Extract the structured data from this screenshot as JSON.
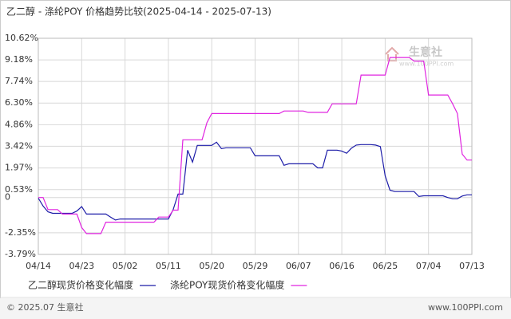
{
  "chart_data": {
    "type": "line",
    "title": "乙二醇 - 涤纶POY 价格趋势比较(2025-04-14 - 2025-07-13)",
    "categories": [
      "04/14",
      null,
      null,
      null,
      null,
      null,
      null,
      null,
      null,
      "04/23",
      null,
      null,
      null,
      null,
      null,
      null,
      null,
      null,
      "05/02",
      null,
      null,
      null,
      null,
      null,
      null,
      null,
      null,
      "05/11",
      null,
      null,
      null,
      null,
      null,
      null,
      null,
      null,
      "05/20",
      null,
      null,
      null,
      null,
      null,
      null,
      null,
      null,
      "05/29",
      null,
      null,
      null,
      null,
      null,
      null,
      null,
      null,
      "06/07",
      null,
      null,
      null,
      null,
      null,
      null,
      null,
      null,
      "06/16",
      null,
      null,
      null,
      null,
      null,
      null,
      null,
      null,
      "06/25",
      null,
      null,
      null,
      null,
      null,
      null,
      null,
      null,
      "07/04",
      null,
      null,
      null,
      null,
      null,
      null,
      null,
      null,
      "07/13"
    ],
    "series": [
      {
        "name": "乙二醇现货价格变化幅度",
        "color": "#1c1ca8",
        "values": [
          -0.04,
          -0.57,
          -0.95,
          -1.05,
          -1.05,
          -1.05,
          -1.05,
          -1.05,
          -0.9,
          -0.6,
          -1.1,
          -1.1,
          -1.1,
          -1.1,
          -1.1,
          -1.3,
          -1.5,
          -1.43,
          -1.43,
          -1.43,
          -1.43,
          -1.43,
          -1.43,
          -1.43,
          -1.43,
          -1.43,
          -1.43,
          -1.43,
          -0.8,
          0.23,
          0.23,
          3.16,
          2.36,
          3.48,
          3.48,
          3.48,
          3.48,
          3.69,
          3.26,
          3.32,
          3.32,
          3.32,
          3.32,
          3.32,
          3.32,
          2.78,
          2.78,
          2.78,
          2.78,
          2.78,
          2.78,
          2.15,
          2.25,
          2.25,
          2.25,
          2.25,
          2.25,
          2.25,
          1.98,
          1.98,
          3.16,
          3.16,
          3.16,
          3.1,
          2.95,
          3.3,
          3.5,
          3.53,
          3.53,
          3.53,
          3.5,
          3.4,
          1.45,
          0.49,
          0.4,
          0.4,
          0.4,
          0.4,
          0.4,
          0.07,
          0.12,
          0.12,
          0.12,
          0.12,
          0.12,
          0.0,
          -0.08,
          -0.08,
          0.1,
          0.18,
          0.18
        ]
      },
      {
        "name": "涤纶POY现货价格变化幅度",
        "color": "#e024e0",
        "values": [
          0.0,
          0.0,
          -0.8,
          -0.8,
          -0.8,
          -1.1,
          -1.1,
          -1.1,
          -1.1,
          -2.0,
          -2.4,
          -2.4,
          -2.4,
          -2.4,
          -1.64,
          -1.64,
          -1.64,
          -1.64,
          -1.64,
          -1.64,
          -1.64,
          -1.64,
          -1.64,
          -1.64,
          -1.64,
          -1.3,
          -1.3,
          -1.3,
          -0.84,
          -0.84,
          3.85,
          3.85,
          3.85,
          3.85,
          3.85,
          5.0,
          5.6,
          5.6,
          5.6,
          5.6,
          5.6,
          5.6,
          5.6,
          5.6,
          5.6,
          5.6,
          5.6,
          5.6,
          5.6,
          5.6,
          5.6,
          5.77,
          5.77,
          5.77,
          5.77,
          5.77,
          5.68,
          5.68,
          5.68,
          5.68,
          5.68,
          6.25,
          6.25,
          6.25,
          6.25,
          6.25,
          6.25,
          8.17,
          8.17,
          8.17,
          8.17,
          8.17,
          8.17,
          9.34,
          9.34,
          9.34,
          9.34,
          9.34,
          9.1,
          9.1,
          9.1,
          6.84,
          6.84,
          6.84,
          6.84,
          6.84,
          6.25,
          5.6,
          2.9,
          2.5,
          2.5
        ]
      }
    ],
    "ylim": [
      -3.79,
      10.62
    ],
    "yticks": [
      {
        "value": 10.62,
        "label": "10.62%"
      },
      {
        "value": 9.18,
        "label": "9.18%"
      },
      {
        "value": 7.74,
        "label": "7.74%"
      },
      {
        "value": 6.3,
        "label": "6.30%"
      },
      {
        "value": 4.86,
        "label": "4.86%"
      },
      {
        "value": 3.42,
        "label": "3.42%"
      },
      {
        "value": 1.97,
        "label": "1.97%"
      },
      {
        "value": 0.53,
        "label": "0.53%"
      },
      0,
      {
        "value": -2.35,
        "label": "-2.35%"
      },
      {
        "value": -3.79,
        "label": "-3.79%"
      }
    ],
    "grid": true,
    "watermark": {
      "name": "生意社",
      "url": "www.100PPI.com"
    },
    "footer": {
      "left": "© 2025.07 生意社",
      "right": "www.100PPI.com"
    }
  }
}
